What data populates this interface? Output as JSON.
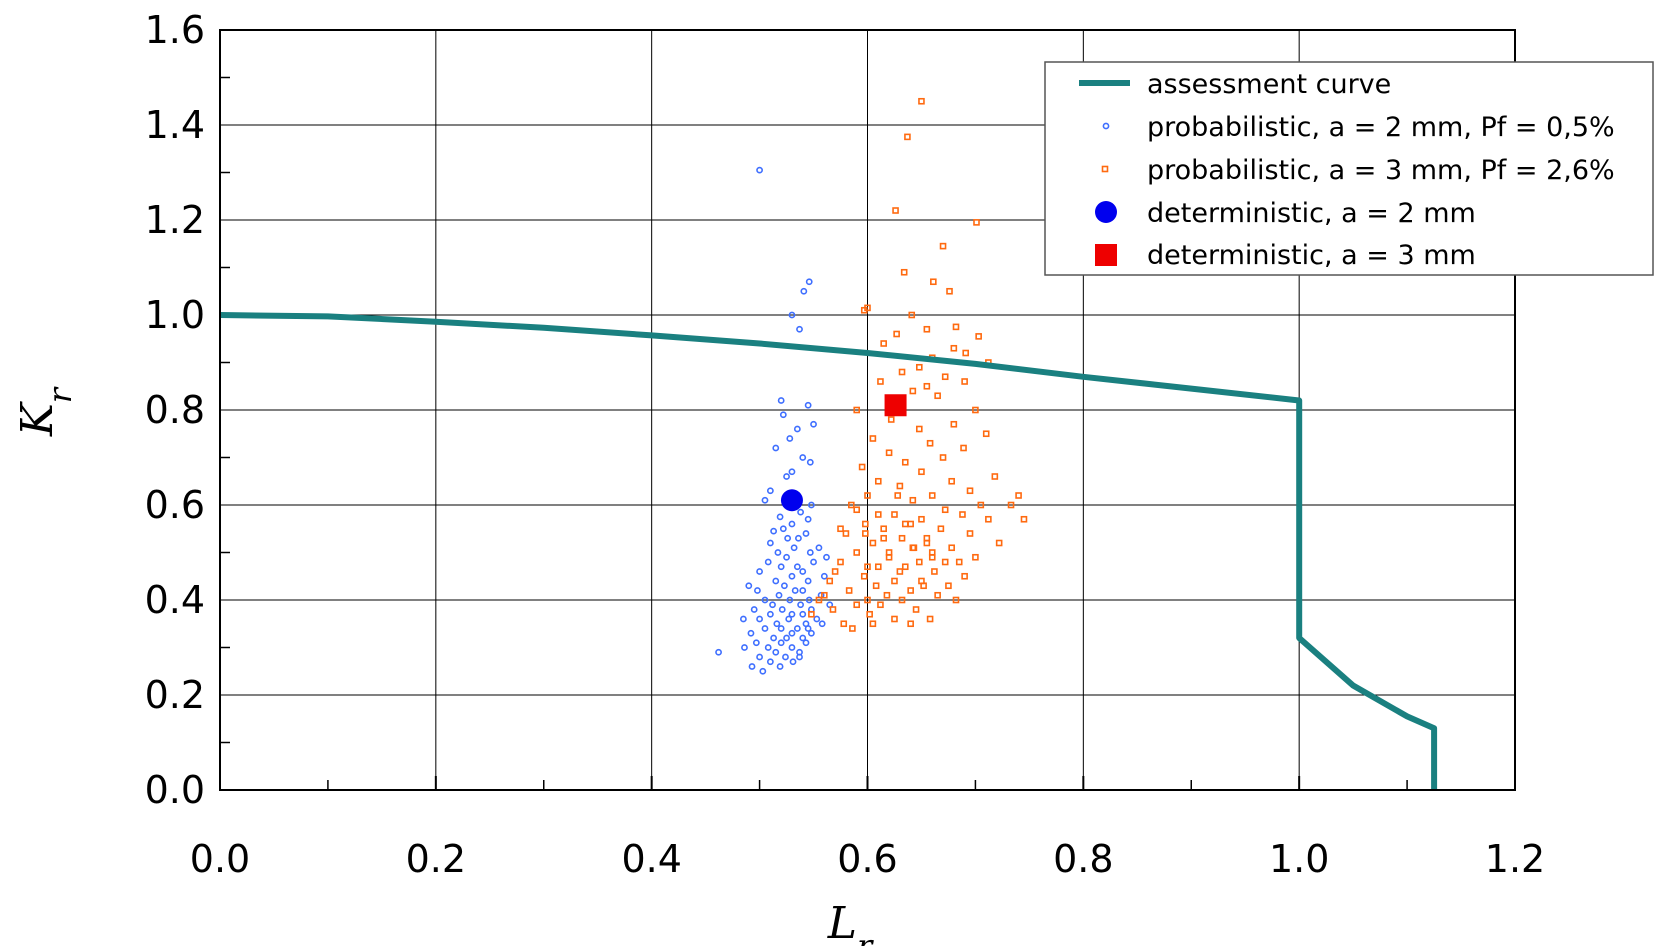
{
  "chart_data": {
    "type": "scatter",
    "title": "",
    "xlabel": "L_r",
    "ylabel": "K_r",
    "xlim": [
      0.0,
      1.2
    ],
    "ylim": [
      0.0,
      1.6
    ],
    "x_ticks": [
      "0.0",
      "0.2",
      "0.4",
      "0.6",
      "0.8",
      "1.0",
      "1.2"
    ],
    "y_ticks": [
      "0.0",
      "0.2",
      "0.4",
      "0.6",
      "0.8",
      "1.0",
      "1.2",
      "1.4",
      "1.6"
    ],
    "grid": true,
    "legend_position": "top-right",
    "legend": [
      "assessment curve",
      "probabilistic, a = 2 mm, Pf = 0,5%",
      "probabilistic, a = 3 mm, Pf = 2,6%",
      "deterministic, a = 2 mm",
      "deterministic, a = 3 mm"
    ],
    "colors": {
      "assessment_curve": "#1a8080",
      "probabilistic_2mm": "#3f6fff",
      "probabilistic_3mm": "#ff6a10",
      "deterministic_2mm": "#0000ee",
      "deterministic_3mm": "#ee0000"
    },
    "series": [
      {
        "name": "assessment curve",
        "kind": "line",
        "x": [
          0.0,
          0.1,
          0.2,
          0.3,
          0.4,
          0.5,
          0.6,
          0.7,
          0.8,
          0.9,
          1.0,
          1.0,
          1.05,
          1.1,
          1.125,
          1.125
        ],
        "y": [
          1.0,
          0.997,
          0.986,
          0.973,
          0.957,
          0.94,
          0.92,
          0.897,
          0.87,
          0.845,
          0.82,
          0.32,
          0.22,
          0.155,
          0.13,
          0.0
        ]
      },
      {
        "name": "probabilistic, a = 2 mm, Pf = 0,5%",
        "kind": "scatter-circle",
        "x": [
          0.5,
          0.546,
          0.541,
          0.53,
          0.537,
          0.52,
          0.545,
          0.522,
          0.55,
          0.535,
          0.528,
          0.515,
          0.54,
          0.547,
          0.53,
          0.525,
          0.51,
          0.505,
          0.528,
          0.548,
          0.538,
          0.519,
          0.545,
          0.53,
          0.522,
          0.513,
          0.543,
          0.536,
          0.526,
          0.51,
          0.532,
          0.555,
          0.517,
          0.547,
          0.562,
          0.525,
          0.508,
          0.55,
          0.535,
          0.52,
          0.5,
          0.54,
          0.53,
          0.56,
          0.515,
          0.545,
          0.523,
          0.49,
          0.54,
          0.498,
          0.533,
          0.518,
          0.557,
          0.528,
          0.505,
          0.546,
          0.512,
          0.538,
          0.565,
          0.495,
          0.521,
          0.548,
          0.53,
          0.51,
          0.54,
          0.553,
          0.485,
          0.5,
          0.527,
          0.543,
          0.516,
          0.558,
          0.505,
          0.535,
          0.52,
          0.492,
          0.53,
          0.548,
          0.513,
          0.54,
          0.525,
          0.462,
          0.497,
          0.52,
          0.543,
          0.508,
          0.53,
          0.486,
          0.515,
          0.537,
          0.5,
          0.524,
          0.545,
          0.51,
          0.493,
          0.531,
          0.503,
          0.519,
          0.537
        ],
        "y": [
          1.305,
          1.07,
          1.05,
          1.0,
          0.97,
          0.82,
          0.81,
          0.79,
          0.77,
          0.76,
          0.74,
          0.72,
          0.7,
          0.69,
          0.67,
          0.66,
          0.63,
          0.61,
          0.6,
          0.6,
          0.585,
          0.575,
          0.57,
          0.56,
          0.55,
          0.545,
          0.54,
          0.53,
          0.53,
          0.52,
          0.51,
          0.51,
          0.5,
          0.5,
          0.49,
          0.49,
          0.48,
          0.48,
          0.47,
          0.47,
          0.46,
          0.46,
          0.45,
          0.45,
          0.44,
          0.44,
          0.43,
          0.43,
          0.42,
          0.42,
          0.42,
          0.41,
          0.41,
          0.4,
          0.4,
          0.4,
          0.39,
          0.39,
          0.39,
          0.38,
          0.38,
          0.38,
          0.37,
          0.37,
          0.37,
          0.36,
          0.36,
          0.36,
          0.36,
          0.35,
          0.35,
          0.35,
          0.34,
          0.34,
          0.34,
          0.33,
          0.33,
          0.33,
          0.32,
          0.32,
          0.32,
          0.29,
          0.31,
          0.31,
          0.31,
          0.3,
          0.3,
          0.3,
          0.29,
          0.29,
          0.28,
          0.28,
          0.34,
          0.27,
          0.26,
          0.27,
          0.25,
          0.26,
          0.28
        ]
      },
      {
        "name": "probabilistic, a = 3 mm, Pf = 2,6%",
        "kind": "scatter-square",
        "x": [
          0.65,
          0.637,
          0.626,
          0.701,
          0.67,
          0.634,
          0.661,
          0.676,
          0.6,
          0.597,
          0.641,
          0.682,
          0.655,
          0.627,
          0.703,
          0.615,
          0.68,
          0.691,
          0.66,
          0.712,
          0.648,
          0.632,
          0.672,
          0.612,
          0.69,
          0.655,
          0.642,
          0.7,
          0.59,
          0.665,
          0.622,
          0.68,
          0.648,
          0.71,
          0.605,
          0.74,
          0.658,
          0.689,
          0.62,
          0.67,
          0.635,
          0.745,
          0.595,
          0.65,
          0.718,
          0.61,
          0.678,
          0.63,
          0.695,
          0.733,
          0.6,
          0.66,
          0.642,
          0.705,
          0.585,
          0.672,
          0.625,
          0.688,
          0.65,
          0.712,
          0.598,
          0.64,
          0.668,
          0.615,
          0.695,
          0.58,
          0.655,
          0.632,
          0.722,
          0.605,
          0.678,
          0.643,
          0.59,
          0.66,
          0.62,
          0.7,
          0.575,
          0.648,
          0.685,
          0.61,
          0.635,
          0.57,
          0.662,
          0.597,
          0.69,
          0.625,
          0.565,
          0.652,
          0.608,
          0.675,
          0.583,
          0.64,
          0.56,
          0.618,
          0.665,
          0.6,
          0.555,
          0.632,
          0.682,
          0.59,
          0.612,
          0.568,
          0.645,
          0.602,
          0.548,
          0.625,
          0.658,
          0.578,
          0.605,
          0.64,
          0.586,
          0.62,
          0.655,
          0.598,
          0.672,
          0.63,
          0.61,
          0.65,
          0.575,
          0.66,
          0.615,
          0.642,
          0.6,
          0.635,
          0.59,
          0.628
        ],
        "y": [
          1.45,
          1.375,
          1.22,
          1.195,
          1.145,
          1.09,
          1.07,
          1.05,
          1.015,
          1.01,
          1.0,
          0.975,
          0.97,
          0.96,
          0.955,
          0.94,
          0.93,
          0.92,
          0.91,
          0.9,
          0.89,
          0.88,
          0.87,
          0.86,
          0.86,
          0.85,
          0.84,
          0.8,
          0.8,
          0.83,
          0.78,
          0.77,
          0.76,
          0.75,
          0.74,
          0.62,
          0.73,
          0.72,
          0.71,
          0.7,
          0.69,
          0.57,
          0.68,
          0.67,
          0.66,
          0.65,
          0.65,
          0.64,
          0.63,
          0.6,
          0.62,
          0.62,
          0.61,
          0.6,
          0.6,
          0.59,
          0.58,
          0.58,
          0.57,
          0.57,
          0.56,
          0.56,
          0.55,
          0.55,
          0.54,
          0.54,
          0.53,
          0.53,
          0.52,
          0.52,
          0.51,
          0.51,
          0.5,
          0.5,
          0.49,
          0.49,
          0.48,
          0.48,
          0.48,
          0.47,
          0.47,
          0.46,
          0.46,
          0.45,
          0.45,
          0.44,
          0.44,
          0.43,
          0.43,
          0.43,
          0.42,
          0.42,
          0.41,
          0.41,
          0.41,
          0.4,
          0.4,
          0.4,
          0.4,
          0.39,
          0.39,
          0.38,
          0.38,
          0.37,
          0.37,
          0.36,
          0.36,
          0.35,
          0.35,
          0.35,
          0.34,
          0.5,
          0.52,
          0.54,
          0.48,
          0.46,
          0.58,
          0.44,
          0.55,
          0.49,
          0.53,
          0.51,
          0.47,
          0.56,
          0.59,
          0.62
        ]
      },
      {
        "name": "deterministic, a = 2 mm",
        "kind": "marker-circle",
        "x": [
          0.53
        ],
        "y": [
          0.61
        ]
      },
      {
        "name": "deterministic, a = 3 mm",
        "kind": "marker-square",
        "x": [
          0.626
        ],
        "y": [
          0.81
        ]
      }
    ]
  }
}
